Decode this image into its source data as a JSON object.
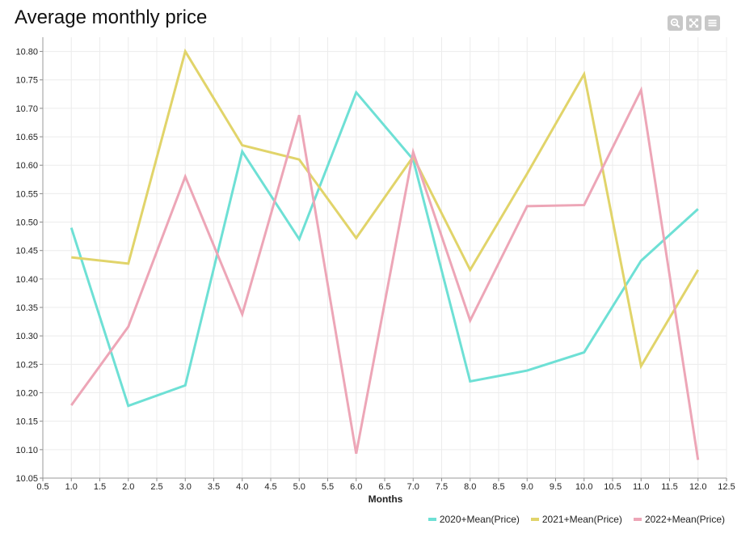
{
  "chart_data": {
    "type": "line",
    "title": "Average monthly price",
    "xlabel": "Months",
    "ylabel": "",
    "xlim": [
      0.5,
      12.5
    ],
    "ylim": [
      10.05,
      10.825
    ],
    "x_ticks": [
      0.5,
      1.0,
      1.5,
      2.0,
      2.5,
      3.0,
      3.5,
      4.0,
      4.5,
      5.0,
      5.5,
      6.0,
      6.5,
      7.0,
      7.5,
      8.0,
      8.5,
      9.0,
      9.5,
      10.0,
      10.5,
      11.0,
      11.5,
      12.0,
      12.5
    ],
    "x_tick_labels": [
      "0.5",
      "1.0",
      "1.5",
      "2.0",
      "2.5",
      "3.0",
      "3.5",
      "4.0",
      "4.5",
      "5.0",
      "5.5",
      "6.0",
      "6.5",
      "7.0",
      "7.5",
      "8.0",
      "8.5",
      "9.0",
      "9.5",
      "10.0",
      "10.5",
      "11.0",
      "11.5",
      "12.0",
      "12.5"
    ],
    "y_ticks": [
      10.05,
      10.1,
      10.15,
      10.2,
      10.25,
      10.3,
      10.35,
      10.4,
      10.45,
      10.5,
      10.55,
      10.6,
      10.65,
      10.7,
      10.75,
      10.8
    ],
    "y_tick_labels": [
      "10.05",
      "10.10",
      "10.15",
      "10.20",
      "10.25",
      "10.30",
      "10.35",
      "10.40",
      "10.45",
      "10.50",
      "10.55",
      "10.60",
      "10.65",
      "10.70",
      "10.75",
      "10.80"
    ],
    "grid": true,
    "legend_position": "bottom-right",
    "x": [
      1,
      2,
      3,
      4,
      5,
      6,
      7,
      8,
      9,
      10,
      11,
      12
    ],
    "series": [
      {
        "name": "2020+Mean(Price)",
        "color": "#6ee0d5",
        "values": [
          10.49,
          10.177,
          10.213,
          10.624,
          10.47,
          10.728,
          10.61,
          10.22,
          10.239,
          10.271,
          10.432,
          10.523
        ]
      },
      {
        "name": "2021+Mean(Price)",
        "color": "#e1d46a",
        "values": [
          10.438,
          10.427,
          10.8,
          10.635,
          10.61,
          10.472,
          10.615,
          10.416,
          10.585,
          10.76,
          10.247,
          10.416
        ]
      },
      {
        "name": "2022+Mean(Price)",
        "color": "#eda6b7",
        "values": [
          10.178,
          10.316,
          10.58,
          10.338,
          10.688,
          10.093,
          10.623,
          10.327,
          10.528,
          10.53,
          10.732,
          10.082
        ]
      }
    ]
  },
  "toolbar": {
    "zoom_icon": "zoom-icon",
    "fullscreen_icon": "fullscreen-icon",
    "menu_icon": "menu-icon"
  }
}
